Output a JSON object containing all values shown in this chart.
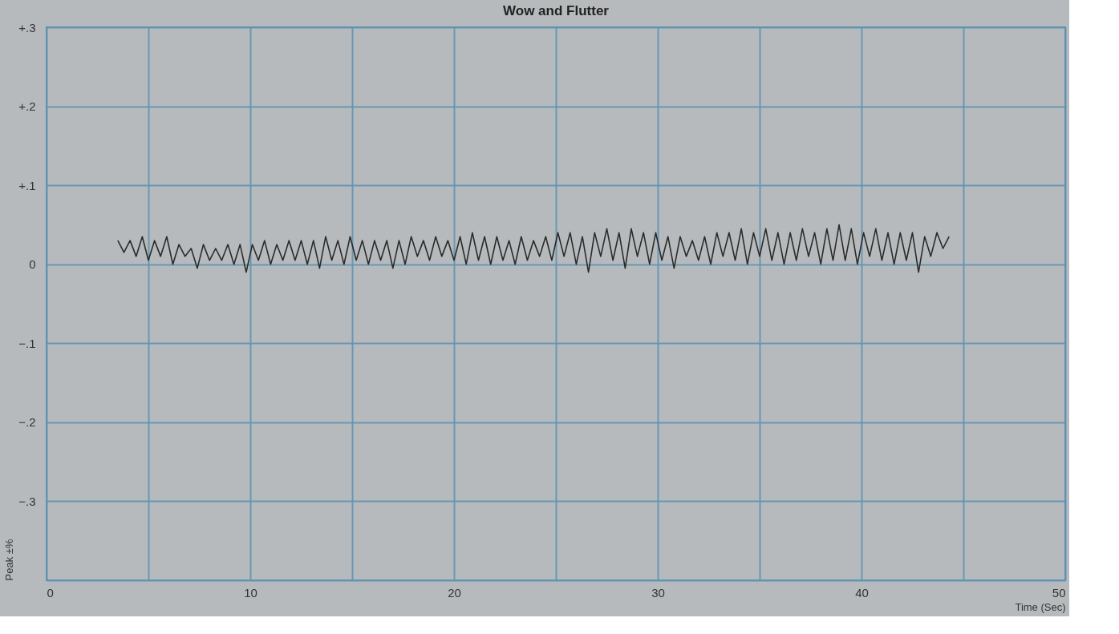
{
  "chart_data": {
    "type": "line",
    "title": "Wow and Flutter",
    "xlabel": "Time (Sec)",
    "ylabel": "Peak ±%",
    "xlim": [
      0,
      50
    ],
    "xticks": [
      0,
      {
        "value": 5,
        "label": null
      },
      10,
      {
        "value": 15,
        "label": null
      },
      20,
      {
        "value": 25,
        "label": null
      },
      30,
      {
        "value": 35,
        "label": null
      },
      40,
      {
        "value": 45,
        "label": null
      },
      50
    ],
    "ylim": [
      -0.4,
      0.3
    ],
    "yticks": [
      {
        "value": -0.4,
        "label": null
      },
      {
        "value": -0.3,
        "label": "−.3"
      },
      {
        "value": -0.2,
        "label": "−.2"
      },
      {
        "value": -0.1,
        "label": "−.1"
      },
      0,
      {
        "value": 0.1,
        "label": "+.1"
      },
      {
        "value": 0.2,
        "label": "+.2"
      },
      {
        "value": 0.3,
        "label": "+.3"
      }
    ],
    "grid": true,
    "marker": "none",
    "line_style": "solid",
    "x": [
      3.5,
      3.8,
      4.1,
      4.4,
      4.7,
      5.0,
      5.3,
      5.6,
      5.9,
      6.2,
      6.5,
      6.8,
      7.1,
      7.4,
      7.7,
      8.0,
      8.3,
      8.6,
      8.9,
      9.2,
      9.5,
      9.8,
      10.1,
      10.4,
      10.7,
      11.0,
      11.3,
      11.6,
      11.9,
      12.2,
      12.5,
      12.8,
      13.1,
      13.4,
      13.7,
      14.0,
      14.3,
      14.6,
      14.9,
      15.2,
      15.5,
      15.8,
      16.1,
      16.4,
      16.7,
      17.0,
      17.3,
      17.6,
      17.9,
      18.2,
      18.5,
      18.8,
      19.1,
      19.4,
      19.7,
      20.0,
      20.3,
      20.6,
      20.9,
      21.2,
      21.5,
      21.8,
      22.1,
      22.4,
      22.7,
      23.0,
      23.3,
      23.6,
      23.9,
      24.2,
      24.5,
      24.8,
      25.1,
      25.4,
      25.7,
      26.0,
      26.3,
      26.6,
      26.9,
      27.2,
      27.5,
      27.8,
      28.1,
      28.4,
      28.7,
      29.0,
      29.3,
      29.6,
      29.9,
      30.2,
      30.5,
      30.8,
      31.1,
      31.4,
      31.7,
      32.0,
      32.3,
      32.6,
      32.9,
      33.2,
      33.5,
      33.8,
      34.1,
      34.4,
      34.7,
      35.0,
      35.3,
      35.6,
      35.9,
      36.2,
      36.5,
      36.8,
      37.1,
      37.4,
      37.7,
      38.0,
      38.3,
      38.6,
      38.9,
      39.2,
      39.5,
      39.8,
      40.1,
      40.4,
      40.7,
      41.0,
      41.3,
      41.6,
      41.9,
      42.2,
      42.5,
      42.8,
      43.1,
      43.4,
      43.7,
      44.0,
      44.3
    ],
    "series": [
      {
        "color": "#2b2b2b",
        "values": [
          0.03,
          0.015,
          0.03,
          0.01,
          0.035,
          0.005,
          0.03,
          0.01,
          0.035,
          0.0,
          0.025,
          0.01,
          0.02,
          -0.005,
          0.025,
          0.005,
          0.02,
          0.005,
          0.025,
          0.0,
          0.025,
          -0.01,
          0.025,
          0.005,
          0.03,
          0.0,
          0.025,
          0.005,
          0.03,
          0.005,
          0.03,
          0.0,
          0.03,
          -0.005,
          0.035,
          0.005,
          0.03,
          0.0,
          0.035,
          0.005,
          0.03,
          0.0,
          0.03,
          0.005,
          0.03,
          -0.005,
          0.03,
          0.0,
          0.035,
          0.01,
          0.03,
          0.005,
          0.035,
          0.01,
          0.03,
          0.005,
          0.035,
          0.0,
          0.04,
          0.005,
          0.035,
          0.0,
          0.035,
          0.005,
          0.03,
          0.0,
          0.035,
          0.005,
          0.03,
          0.01,
          0.035,
          0.005,
          0.04,
          0.01,
          0.04,
          0.0,
          0.035,
          -0.01,
          0.04,
          0.01,
          0.045,
          0.005,
          0.04,
          -0.005,
          0.045,
          0.01,
          0.04,
          0.0,
          0.04,
          0.005,
          0.035,
          -0.005,
          0.035,
          0.01,
          0.03,
          0.005,
          0.035,
          0.0,
          0.04,
          0.01,
          0.04,
          0.005,
          0.045,
          0.0,
          0.04,
          0.01,
          0.045,
          0.005,
          0.04,
          0.0,
          0.04,
          0.005,
          0.045,
          0.01,
          0.04,
          0.0,
          0.045,
          0.005,
          0.05,
          0.005,
          0.045,
          0.0,
          0.04,
          0.01,
          0.045,
          0.005,
          0.04,
          0.0,
          0.04,
          0.005,
          0.04,
          -0.01,
          0.035,
          0.01,
          0.04,
          0.02,
          0.035
        ]
      }
    ]
  }
}
